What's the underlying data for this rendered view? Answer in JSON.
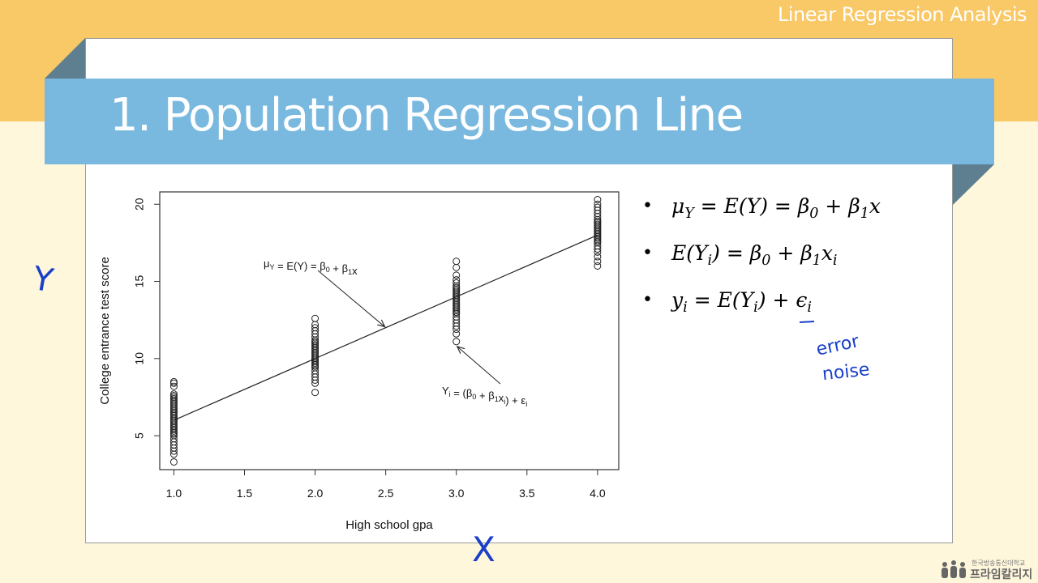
{
  "header": {
    "course_title": "Linear Regression Analysis"
  },
  "slide": {
    "title": "1. Population Regression Line"
  },
  "equations": [
    {
      "id": "eq1",
      "text": "μY = E(Y) = β0 + β1x"
    },
    {
      "id": "eq2",
      "text": "E(Yi) = β0 + β1xi"
    },
    {
      "id": "eq3",
      "text": "yi = E(Yi) + ϵi"
    }
  ],
  "handwriting": {
    "y_axis": "Y",
    "x_axis": "X",
    "note_line1": "error",
    "note_line2": "noise"
  },
  "logo": {
    "line1": "한국방송통신대학교",
    "line2": "프라임칼리지"
  },
  "colors": {
    "banner": "#7ab9df",
    "top_band": "#f9c867",
    "background": "#fef7dc",
    "ink": "#1a3fc8"
  },
  "chart_data": {
    "type": "scatter",
    "xlabel": "High school gpa",
    "ylabel": "College entrance test score",
    "xlim": [
      0.9,
      4.15
    ],
    "ylim": [
      2.8,
      20.8
    ],
    "xticks": [
      "1.0",
      "1.5",
      "2.0",
      "2.5",
      "3.0",
      "3.5",
      "4.0"
    ],
    "yticks": [
      "5",
      "10",
      "15",
      "20"
    ],
    "regression_line": {
      "intercept": 2,
      "slope": 4,
      "x_range": [
        1.0,
        4.0
      ]
    },
    "annotations": [
      {
        "label": "μY = E(Y) = β0 + β1x",
        "points_to": [
          2.5,
          12
        ]
      },
      {
        "label": "Yi = (β0 + β1xi) + εi",
        "points_to": [
          3.0,
          11.1
        ]
      }
    ],
    "groups": [
      {
        "x": 1.0,
        "y": [
          3.3,
          3.8,
          4.0,
          4.2,
          4.4,
          4.6,
          4.8,
          5.0,
          5.1,
          5.2,
          5.3,
          5.4,
          5.5,
          5.6,
          5.7,
          5.8,
          5.9,
          6.0,
          6.0,
          6.1,
          6.2,
          6.3,
          6.4,
          6.5,
          6.6,
          6.7,
          6.8,
          6.9,
          7.0,
          7.1,
          7.2,
          7.3,
          7.4,
          7.5,
          7.6,
          7.7,
          8.2,
          8.4,
          8.5
        ]
      },
      {
        "x": 2.0,
        "y": [
          7.8,
          8.4,
          8.6,
          8.8,
          9.0,
          9.2,
          9.4,
          9.5,
          9.6,
          9.7,
          9.8,
          9.9,
          10.0,
          10.0,
          10.1,
          10.2,
          10.3,
          10.4,
          10.5,
          10.6,
          10.7,
          10.8,
          10.9,
          11.0,
          11.1,
          11.2,
          11.4,
          11.6,
          11.8,
          12.0,
          12.2,
          12.6
        ]
      },
      {
        "x": 3.0,
        "y": [
          11.1,
          11.6,
          11.9,
          12.1,
          12.3,
          12.5,
          12.7,
          12.9,
          13.0,
          13.1,
          13.2,
          13.3,
          13.4,
          13.5,
          13.6,
          13.7,
          13.8,
          13.9,
          14.0,
          14.1,
          14.2,
          14.3,
          14.4,
          14.5,
          14.6,
          14.7,
          14.9,
          15.1,
          15.4,
          15.9,
          16.3
        ]
      },
      {
        "x": 4.0,
        "y": [
          16.0,
          16.3,
          16.6,
          16.9,
          17.1,
          17.3,
          17.5,
          17.6,
          17.7,
          17.8,
          17.9,
          18.0,
          18.1,
          18.2,
          18.3,
          18.4,
          18.5,
          18.6,
          18.7,
          18.8,
          18.9,
          19.0,
          19.2,
          19.4,
          19.6,
          19.8,
          20.0,
          20.3
        ]
      }
    ]
  }
}
